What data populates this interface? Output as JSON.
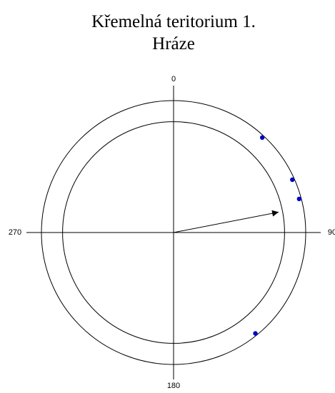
{
  "chart_data": {
    "type": "circular",
    "title": "Křemelná teritorium 1.",
    "subtitle": "Hráze",
    "angles": [
      43,
      66,
      75,
      141
    ],
    "color": "#0000cc",
    "mean_direction": 79,
    "mean_resultant_length": 0.81,
    "reference_circle": 0.84,
    "rlim": [
      0,
      1
    ],
    "angle_ticks": [
      0,
      90,
      180,
      270
    ]
  }
}
